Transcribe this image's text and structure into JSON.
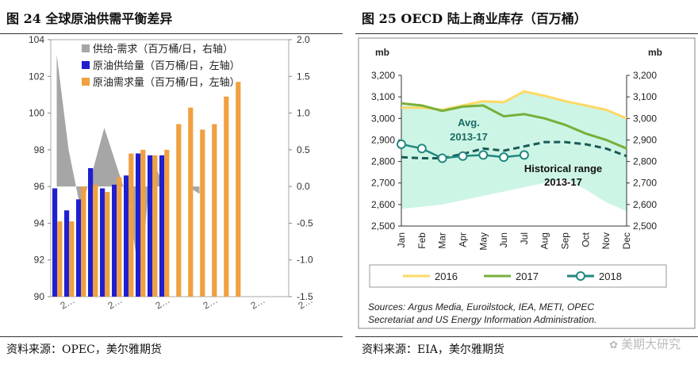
{
  "chart_data": [
    {
      "type": "bar",
      "title": "图 24    全球原油供需平衡差异",
      "source": "资料来源：OPEC，美尔雅期货",
      "left_axis": {
        "range": [
          90,
          104
        ],
        "ticks": [
          "90",
          "92",
          "94",
          "96",
          "98",
          "100",
          "102",
          "104"
        ]
      },
      "right_axis": {
        "range": [
          -1.5,
          2.0
        ],
        "ticks": [
          "-1.5",
          "-1.0",
          "-0.5",
          "0.0",
          "0.5",
          "1.0",
          "1.5",
          "2.0"
        ]
      },
      "x_tick_labels": [
        "2…",
        "2…",
        "2…",
        "2…",
        "2…",
        "2…"
      ],
      "legend": [
        "供给-需求（百万桶/日，右轴）",
        "原油供给量（百万桶/日，左轴）",
        "原油需求量（百万桶/日，左轴）"
      ],
      "series": [
        {
          "name": "供给-需求（百万桶/日，右轴）",
          "axis": "right",
          "kind": "area",
          "color": "#a6a6a6",
          "values": [
            1.8,
            0.5,
            -0.3,
            0.2,
            0.8,
            0.3,
            -0.2,
            -1.3,
            0.4,
            0.0,
            0.0,
            0.0,
            -0.1
          ]
        },
        {
          "name": "原油供给量（百万桶/日，左轴）",
          "axis": "left",
          "kind": "bar",
          "color": "#1f1fd0",
          "values": [
            95.9,
            94.7,
            95.3,
            97.0,
            95.9,
            96.1,
            96.6,
            97.8,
            97.7,
            97.7,
            null,
            null,
            null,
            null,
            null,
            null,
            null,
            null,
            null,
            null
          ]
        },
        {
          "name": "原油需求量（百万桶/日，左轴）",
          "axis": "left",
          "kind": "bar",
          "color": "#f0a040",
          "values": [
            94.1,
            94.1,
            96.0,
            96.1,
            95.7,
            96.5,
            97.8,
            98.0,
            97.7,
            98.0,
            99.4,
            100.3,
            99.1,
            99.4,
            100.9,
            101.7,
            null,
            null,
            null,
            null
          ]
        }
      ]
    },
    {
      "type": "line",
      "title": "图 25    OECD 陆上商业库存（百万桶）",
      "source": "资料来源：EIA，美尔雅期货",
      "unit_left": "mb",
      "unit_right": "mb",
      "categories": [
        "Jan",
        "Feb",
        "Mar",
        "Apr",
        "May",
        "Jun",
        "Jul",
        "Aug",
        "Sep",
        "Oct",
        "Nov",
        "Dec"
      ],
      "ylim": [
        2500,
        3200
      ],
      "y_ticks": [
        "2,500",
        "2,600",
        "2,700",
        "2,800",
        "2,900",
        "3,000",
        "3,100",
        "3,200"
      ],
      "band": {
        "name": "Historical range 2013-17",
        "color": "#cdf5e6",
        "upper": [
          3060,
          3060,
          3035,
          3055,
          3075,
          3080,
          3130,
          3110,
          3080,
          3060,
          3040,
          3000
        ],
        "lower": [
          2580,
          2590,
          2600,
          2620,
          2640,
          2660,
          2680,
          2700,
          2720,
          2670,
          2610,
          2570
        ]
      },
      "avg": {
        "name": "Avg. 2013-17",
        "values": [
          2820,
          2815,
          2815,
          2835,
          2860,
          2850,
          2870,
          2890,
          2890,
          2880,
          2860,
          2825
        ]
      },
      "series": [
        {
          "name": "2016",
          "color": "#ffd966",
          "values": [
            3050,
            3050,
            3040,
            3060,
            3080,
            3075,
            3125,
            3105,
            3080,
            3060,
            3040,
            3000
          ]
        },
        {
          "name": "2017",
          "color": "#77b03a",
          "values": [
            3070,
            3060,
            3035,
            3055,
            3060,
            3010,
            3020,
            3000,
            2970,
            2930,
            2900,
            2860
          ]
        },
        {
          "name": "2018",
          "color": "#20887f",
          "values": [
            2880,
            2860,
            2815,
            2825,
            2830,
            2820,
            2830,
            null,
            null,
            null,
            null,
            null
          ]
        }
      ],
      "annotations": [
        {
          "id": "avg_label",
          "lines": [
            "Avg.",
            "2013-17"
          ]
        },
        {
          "id": "hist_label",
          "lines": [
            "Historical range",
            "2013-17"
          ]
        }
      ],
      "sources_note": [
        "Sources: Argus Media, Euroilstock, IEA, METI, OPEC",
        "Secretariat and US Energy Information Administration."
      ]
    }
  ],
  "brand": "美期大研究"
}
